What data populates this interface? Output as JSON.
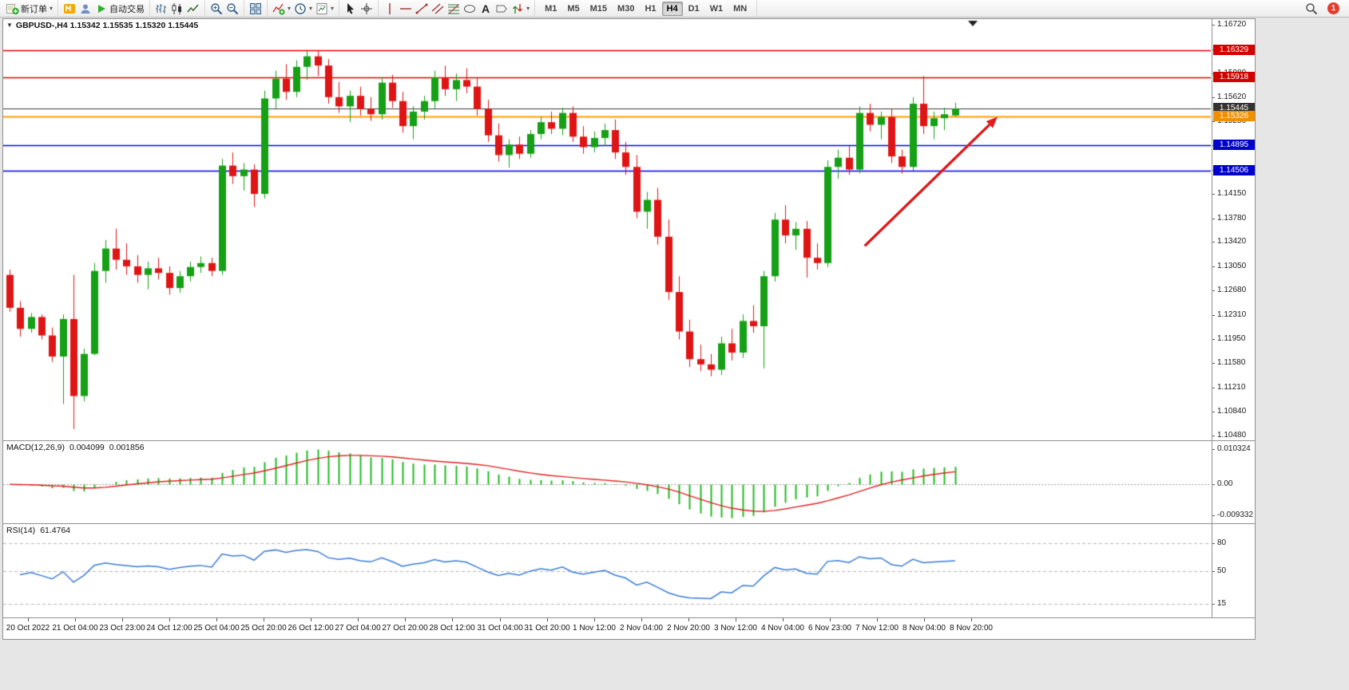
{
  "toolbar": {
    "groups": [
      {
        "items": [
          {
            "icon": "new-order",
            "label": "新订单",
            "dropdown": true
          }
        ]
      },
      {
        "items": [
          {
            "icon": "metaquotes"
          },
          {
            "icon": "profile"
          },
          {
            "icon": "autotrade",
            "label": "自动交易"
          }
        ]
      },
      {
        "items": [
          {
            "icon": "bar-chart"
          },
          {
            "icon": "candle-chart"
          },
          {
            "icon": "line-chart"
          }
        ]
      },
      {
        "items": [
          {
            "icon": "zoom-in"
          },
          {
            "icon": "zoom-out"
          }
        ]
      },
      {
        "items": [
          {
            "icon": "tile-windows"
          }
        ]
      },
      {
        "items": [
          {
            "icon": "indicators",
            "dropdown": true
          },
          {
            "icon": "periods",
            "dropdown": true
          },
          {
            "icon": "templates",
            "dropdown": true
          }
        ]
      },
      {
        "items": [
          {
            "icon": "cursor"
          },
          {
            "icon": "crosshair"
          }
        ]
      },
      {
        "items": [
          {
            "icon": "vline"
          },
          {
            "icon": "hline"
          },
          {
            "icon": "trendline"
          },
          {
            "icon": "channel"
          },
          {
            "icon": "fibonacci"
          },
          {
            "icon": "shapes"
          },
          {
            "icon": "text"
          },
          {
            "icon": "label"
          },
          {
            "icon": "arrows",
            "dropdown": true
          }
        ]
      }
    ],
    "timeframes": [
      {
        "label": "M1",
        "active": false
      },
      {
        "label": "M5",
        "active": false
      },
      {
        "label": "M15",
        "active": false
      },
      {
        "label": "M30",
        "active": false
      },
      {
        "label": "H1",
        "active": false
      },
      {
        "label": "H4",
        "active": true
      },
      {
        "label": "D1",
        "active": false
      },
      {
        "label": "W1",
        "active": false
      },
      {
        "label": "MN",
        "active": false
      }
    ],
    "notification_count": "1"
  },
  "chart_data": {
    "type": "candlestick",
    "symbol": "GBPUSD-",
    "timeframe": "H4",
    "symbol_label": "GBPUSD-,H4  1.15342 1.15535 1.15320 1.15445",
    "ohlc_display": {
      "open": "1.15342",
      "high": "1.15535",
      "low": "1.15320",
      "close": "1.15445"
    },
    "colors": {
      "bull": "#16a016",
      "bear": "#df1515",
      "macd_hist": "#22bb22",
      "macd_signal": "#e02020",
      "rsi_line": "#3b7cd8",
      "arrow": "#df1f1f"
    },
    "price_axis": {
      "max": 1.1672,
      "min": 1.1048,
      "ticks": [
        "1.16720",
        "1.16350",
        "1.15980",
        "1.15620",
        "1.15250",
        "1.14890",
        "1.14520",
        "1.14150",
        "1.13780",
        "1.13420",
        "1.13050",
        "1.12680",
        "1.12310",
        "1.11950",
        "1.11580",
        "1.11210",
        "1.10840",
        "1.10480"
      ]
    },
    "hlines": [
      {
        "price": 1.16329,
        "color": "#e00000",
        "width": 1.4
      },
      {
        "price": 1.15918,
        "color": "#e00000",
        "width": 1.4
      },
      {
        "price": 1.15445,
        "color": "#3c3c3c",
        "width": 1.2
      },
      {
        "price": 1.15326,
        "color": "#ff9e00",
        "width": 1.8
      },
      {
        "price": 1.14895,
        "color": "#0000e0",
        "width": 1.6
      },
      {
        "price": 1.14506,
        "color": "#0000e0",
        "width": 1.6
      }
    ],
    "price_badges": [
      {
        "text": "1.16329",
        "price": 1.16329,
        "color": "#d40000"
      },
      {
        "text": "1.15918",
        "price": 1.15918,
        "color": "#d40000"
      },
      {
        "text": "1.15445",
        "price": 1.15445,
        "color": "#333333"
      },
      {
        "text": "1.15326",
        "price": 1.15326,
        "color": "#f09000"
      },
      {
        "text": "1.14895",
        "price": 1.14895,
        "color": "#0000cc"
      },
      {
        "text": "1.14506",
        "price": 1.14506,
        "color": "#0000cc"
      }
    ],
    "candles": [
      [
        1.1292,
        1.13,
        1.1236,
        1.1242
      ],
      [
        1.1242,
        1.1252,
        1.1198,
        1.121
      ],
      [
        1.121,
        1.1234,
        1.1204,
        1.1228
      ],
      [
        1.1228,
        1.1232,
        1.1194,
        1.12
      ],
      [
        1.12,
        1.1212,
        1.116,
        1.1168
      ],
      [
        1.1168,
        1.1232,
        1.1096,
        1.1225
      ],
      [
        1.1225,
        1.1292,
        1.1058,
        1.1108
      ],
      [
        1.1108,
        1.118,
        1.11,
        1.1172
      ],
      [
        1.1172,
        1.131,
        1.117,
        1.1298
      ],
      [
        1.1298,
        1.1345,
        1.128,
        1.1332
      ],
      [
        1.1332,
        1.1362,
        1.13,
        1.1315
      ],
      [
        1.1315,
        1.134,
        1.1292,
        1.1305
      ],
      [
        1.1305,
        1.1322,
        1.128,
        1.1292
      ],
      [
        1.1292,
        1.1312,
        1.127,
        1.1302
      ],
      [
        1.1302,
        1.1318,
        1.1285,
        1.1295
      ],
      [
        1.1295,
        1.1305,
        1.1262,
        1.1272
      ],
      [
        1.1272,
        1.1298,
        1.1265,
        1.129
      ],
      [
        1.129,
        1.1312,
        1.1282,
        1.1304
      ],
      [
        1.1304,
        1.132,
        1.1295,
        1.131
      ],
      [
        1.131,
        1.1318,
        1.129,
        1.1298
      ],
      [
        1.1298,
        1.1468,
        1.1292,
        1.1458
      ],
      [
        1.1458,
        1.1478,
        1.143,
        1.1442
      ],
      [
        1.1442,
        1.1462,
        1.142,
        1.1452
      ],
      [
        1.1452,
        1.146,
        1.1395,
        1.1415
      ],
      [
        1.1415,
        1.1572,
        1.1408,
        1.156
      ],
      [
        1.156,
        1.1602,
        1.1545,
        1.159
      ],
      [
        1.159,
        1.1612,
        1.1558,
        1.157
      ],
      [
        1.157,
        1.1618,
        1.1562,
        1.1608
      ],
      [
        1.1608,
        1.1632,
        1.1588,
        1.1624
      ],
      [
        1.1624,
        1.1633,
        1.1594,
        1.161
      ],
      [
        1.161,
        1.162,
        1.1552,
        1.1562
      ],
      [
        1.1562,
        1.1585,
        1.1538,
        1.1548
      ],
      [
        1.1548,
        1.1572,
        1.1524,
        1.1564
      ],
      [
        1.1564,
        1.1578,
        1.1534,
        1.1544
      ],
      [
        1.1544,
        1.1562,
        1.1526,
        1.1536
      ],
      [
        1.1536,
        1.1592,
        1.1528,
        1.1584
      ],
      [
        1.1584,
        1.1596,
        1.1546,
        1.1556
      ],
      [
        1.1556,
        1.157,
        1.1508,
        1.1518
      ],
      [
        1.1518,
        1.1548,
        1.1498,
        1.154
      ],
      [
        1.154,
        1.1564,
        1.1528,
        1.1556
      ],
      [
        1.1556,
        1.1602,
        1.1545,
        1.1592
      ],
      [
        1.1592,
        1.161,
        1.1564,
        1.1574
      ],
      [
        1.1574,
        1.1598,
        1.1556,
        1.1588
      ],
      [
        1.1588,
        1.1606,
        1.1568,
        1.1578
      ],
      [
        1.1578,
        1.1592,
        1.1534,
        1.1544
      ],
      [
        1.1544,
        1.1558,
        1.1494,
        1.1504
      ],
      [
        1.1504,
        1.1522,
        1.1464,
        1.1474
      ],
      [
        1.1474,
        1.1498,
        1.1455,
        1.149
      ],
      [
        1.149,
        1.1502,
        1.1468,
        1.1476
      ],
      [
        1.1476,
        1.1512,
        1.147,
        1.1506
      ],
      [
        1.1506,
        1.1532,
        1.1498,
        1.1524
      ],
      [
        1.1524,
        1.154,
        1.1506,
        1.1514
      ],
      [
        1.1514,
        1.1546,
        1.1504,
        1.1538
      ],
      [
        1.1538,
        1.1548,
        1.1494,
        1.1502
      ],
      [
        1.1502,
        1.1518,
        1.1476,
        1.1486
      ],
      [
        1.1486,
        1.151,
        1.1478,
        1.15
      ],
      [
        1.15,
        1.1522,
        1.1488,
        1.1512
      ],
      [
        1.1512,
        1.1528,
        1.1468,
        1.1478
      ],
      [
        1.1478,
        1.1494,
        1.1444,
        1.1456
      ],
      [
        1.1456,
        1.1474,
        1.1378,
        1.1388
      ],
      [
        1.1388,
        1.1418,
        1.1362,
        1.1406
      ],
      [
        1.1406,
        1.1424,
        1.1338,
        1.135
      ],
      [
        1.135,
        1.1376,
        1.1254,
        1.1266
      ],
      [
        1.1266,
        1.129,
        1.1194,
        1.1206
      ],
      [
        1.1206,
        1.1224,
        1.1152,
        1.1164
      ],
      [
        1.1164,
        1.1186,
        1.1146,
        1.1156
      ],
      [
        1.1156,
        1.1172,
        1.1138,
        1.1148
      ],
      [
        1.1148,
        1.1198,
        1.114,
        1.1188
      ],
      [
        1.1188,
        1.121,
        1.1162,
        1.1174
      ],
      [
        1.1174,
        1.1232,
        1.1166,
        1.1222
      ],
      [
        1.1222,
        1.1246,
        1.1204,
        1.1214
      ],
      [
        1.1214,
        1.1298,
        1.115,
        1.129
      ],
      [
        1.129,
        1.1386,
        1.1282,
        1.1376
      ],
      [
        1.1376,
        1.1398,
        1.134,
        1.1352
      ],
      [
        1.1352,
        1.1372,
        1.133,
        1.1362
      ],
      [
        1.1362,
        1.1374,
        1.1288,
        1.1318
      ],
      [
        1.1318,
        1.134,
        1.13,
        1.131
      ],
      [
        1.131,
        1.1466,
        1.1304,
        1.1456
      ],
      [
        1.1456,
        1.1482,
        1.1438,
        1.147
      ],
      [
        1.147,
        1.1488,
        1.1444,
        1.1452
      ],
      [
        1.1452,
        1.1548,
        1.1446,
        1.1538
      ],
      [
        1.1538,
        1.1552,
        1.151,
        1.152
      ],
      [
        1.152,
        1.154,
        1.1498,
        1.1532
      ],
      [
        1.1532,
        1.1544,
        1.1462,
        1.1472
      ],
      [
        1.1472,
        1.1482,
        1.1446,
        1.1456
      ],
      [
        1.1456,
        1.1562,
        1.145,
        1.1552
      ],
      [
        1.1552,
        1.1594,
        1.1506,
        1.1518
      ],
      [
        1.1518,
        1.154,
        1.1498,
        1.153
      ],
      [
        1.153,
        1.1546,
        1.1512,
        1.1536
      ],
      [
        1.15342,
        1.15535,
        1.1532,
        1.15445
      ]
    ],
    "time_labels": [
      "20 Oct 2022",
      "21 Oct 04:00",
      "23 Oct 23:00",
      "24 Oct 12:00",
      "25 Oct 04:00",
      "25 Oct 20:00",
      "26 Oct 12:00",
      "27 Oct 04:00",
      "27 Oct 20:00",
      "28 Oct 12:00",
      "31 Oct 04:00",
      "31 Oct 20:00",
      "1 Nov 12:00",
      "2 Nov 04:00",
      "2 Nov 20:00",
      "3 Nov 12:00",
      "4 Nov 04:00",
      "6 Nov 23:00",
      "7 Nov 12:00",
      "8 Nov 04:00",
      "8 Nov 20:00"
    ],
    "macd": {
      "name": "MACD(12,26,9)",
      "value_main": "0.004099",
      "value_signal": "0.001856",
      "params": [
        12,
        26,
        9
      ],
      "scale": [
        "0.010324",
        "0.00",
        "-0.009332"
      ],
      "scale_max": 0.010324,
      "scale_min": -0.009332
    },
    "rsi": {
      "name": "RSI(14)",
      "value": "61.4764",
      "period": 14,
      "levels": [
        80,
        50,
        15
      ],
      "scale": [
        "80",
        "50",
        "15"
      ]
    },
    "arrow": {
      "from_bar": 80.5,
      "from_price": 1.1336,
      "to_bar": 93,
      "to_price": 1.1532
    }
  }
}
